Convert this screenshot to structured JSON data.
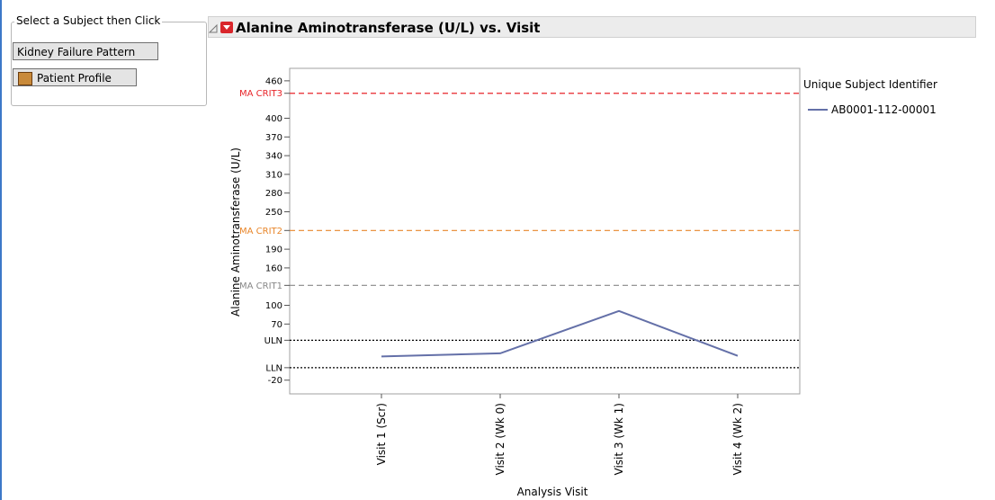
{
  "panel": {
    "caption": "Select a Subject then Click",
    "buttons": [
      "Kidney Failure Pattern",
      "Patient Profile"
    ]
  },
  "chart_data": {
    "type": "line",
    "title": "Alanine Aminotransferase (U/L) vs. Visit",
    "x_label": "Analysis Visit",
    "y_label": "Alanine Aminotransferase (U/L)",
    "categories": [
      "Visit 1 (Scr)",
      "Visit 2 (Wk 0)",
      "Visit 3 (Wk 1)",
      "Visit 4 (Wk 2)"
    ],
    "legend_title": "Unique Subject Identifier",
    "series": [
      {
        "name": "AB0001-112-00001",
        "color": "#6470a8",
        "values": [
          18,
          23,
          91,
          19
        ]
      }
    ],
    "ylim": [
      -42,
      480
    ],
    "yticks": [
      460,
      {
        "value": 440,
        "label": "MA CRIT3",
        "color": "#e8262b",
        "line": "dashed"
      },
      400,
      370,
      340,
      310,
      280,
      250,
      {
        "value": 220,
        "label": "MA CRIT2",
        "color": "#e8862a",
        "line": "dashed"
      },
      190,
      160,
      {
        "value": 132,
        "label": "MA CRIT1",
        "color": "#888888",
        "line": "dashed"
      },
      100,
      70,
      {
        "value": 44,
        "label": "ULN",
        "color": "#000000",
        "line": "dotted"
      },
      {
        "value": 0,
        "label": "LLN",
        "color": "#000000",
        "line": "dotted"
      },
      -20
    ]
  }
}
